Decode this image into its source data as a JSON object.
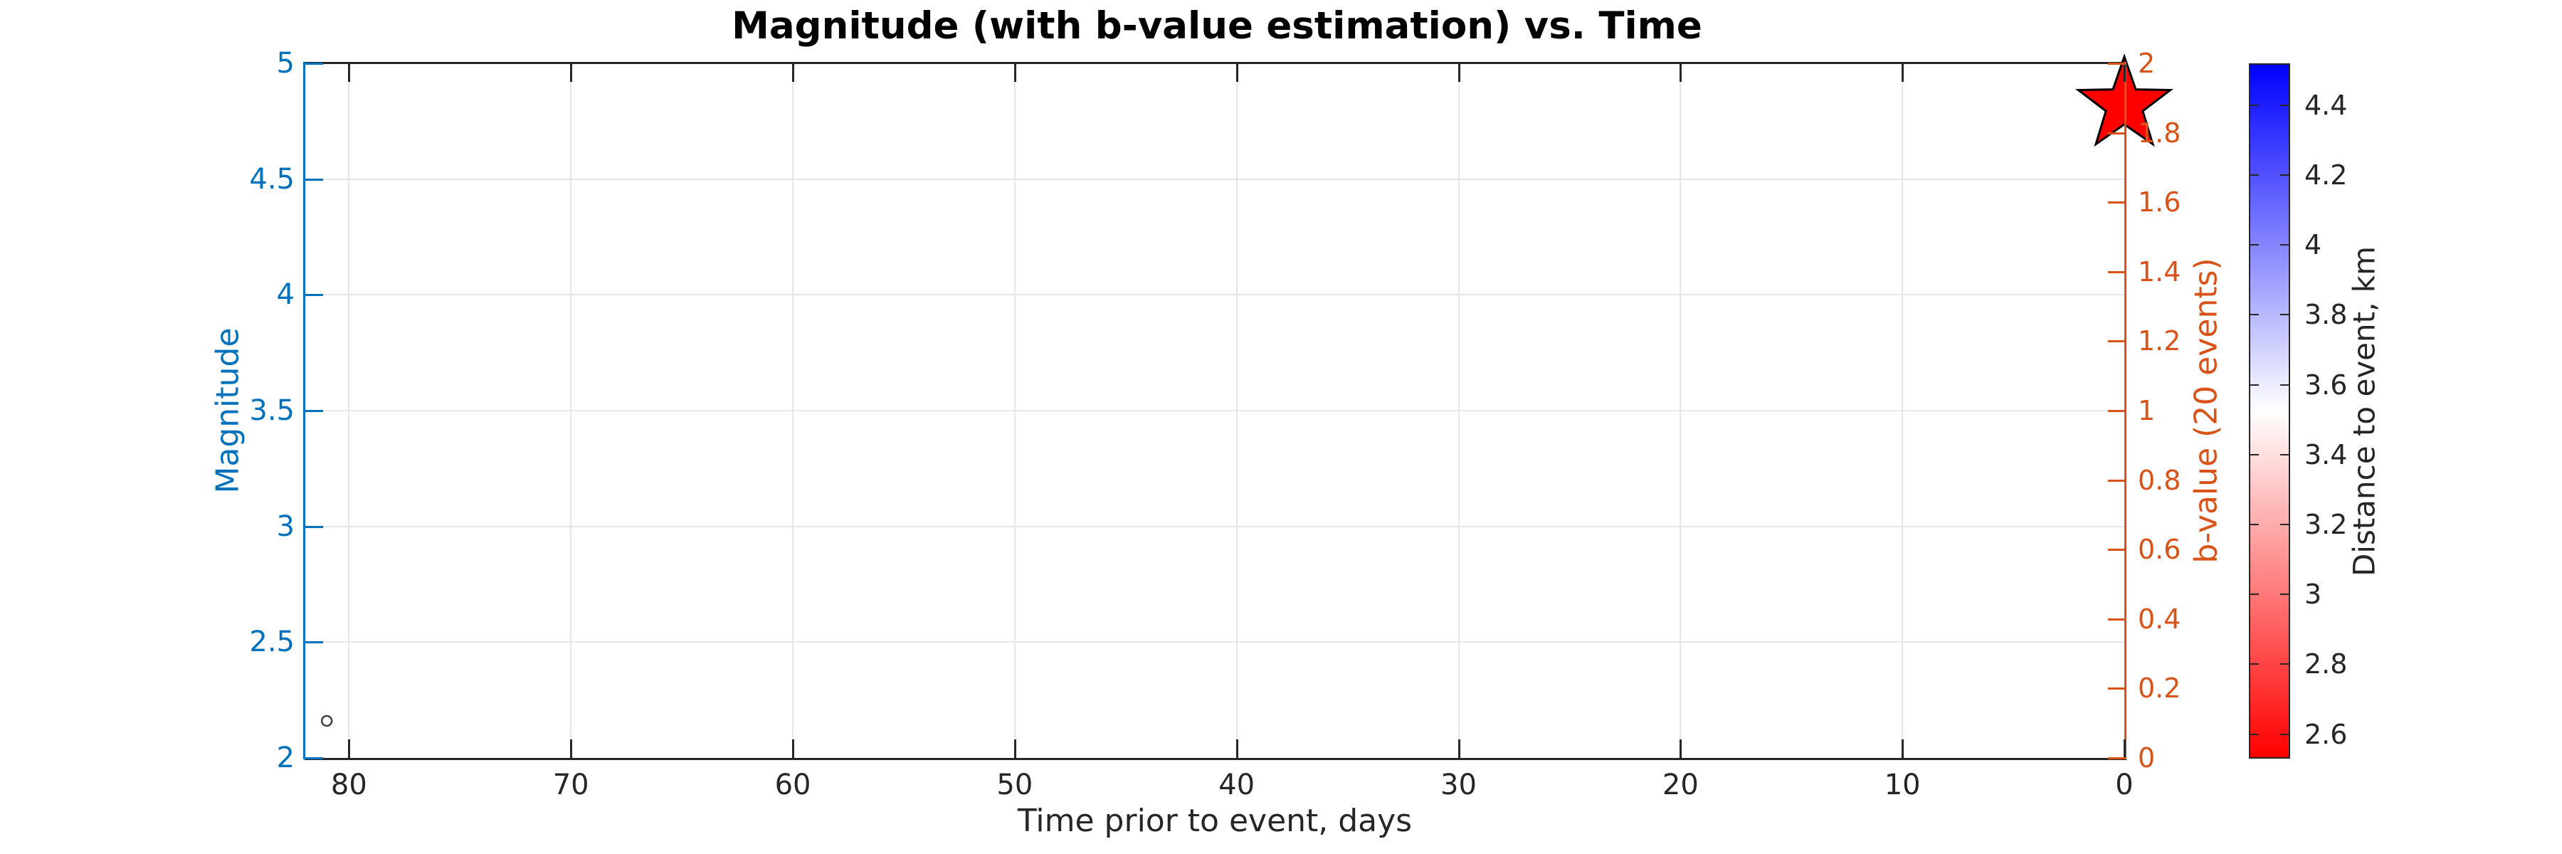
{
  "title": "Magnitude (with b-value estimation) vs. Time",
  "chart_data": {
    "type": "scatter",
    "title": "Magnitude (with b-value estimation) vs. Time",
    "grid": true,
    "legend": "none",
    "x_axis": {
      "label": "Time prior to event, days",
      "tick_labels": [
        "80",
        "70",
        "60",
        "50",
        "40",
        "30",
        "20",
        "10",
        "0"
      ],
      "tick_values": [
        80,
        70,
        60,
        50,
        40,
        30,
        20,
        10,
        0
      ],
      "range": [
        82,
        0
      ],
      "reversed": true,
      "color": "#262626"
    },
    "y_left_axis": {
      "label": "Magnitude",
      "color": "#0072BD",
      "tick_labels": [
        "2",
        "2.5",
        "3",
        "3.5",
        "4",
        "4.5",
        "5"
      ],
      "tick_values": [
        2,
        2.5,
        3,
        3.5,
        4,
        4.5,
        5
      ],
      "range": [
        2,
        5
      ]
    },
    "y_right_axis": {
      "label": "b-value (20 events)",
      "color": "#D95319",
      "tick_labels": [
        "0",
        "0.2",
        "0.4",
        "0.6",
        "0.8",
        "1",
        "1.2",
        "1.4",
        "1.6",
        "1.8",
        "2"
      ],
      "tick_values": [
        0,
        0.2,
        0.4,
        0.6,
        0.8,
        1,
        1.2,
        1.4,
        1.6,
        1.8,
        2
      ],
      "range": [
        0,
        2
      ]
    },
    "colorbar": {
      "label": "Distance to event, km",
      "tick_labels": [
        "2.6",
        "2.8",
        "3",
        "3.2",
        "3.4",
        "3.6",
        "3.8",
        "4",
        "4.2",
        "4.4"
      ],
      "tick_values": [
        2.6,
        2.8,
        3,
        3.2,
        3.4,
        3.6,
        3.8,
        4,
        4.2,
        4.4
      ],
      "range": [
        2.53,
        4.52
      ],
      "colormap_name": "blue-white-red",
      "colormap_stops": [
        "#0000FF",
        "#FFFFFF",
        "#FF0000"
      ]
    },
    "series": [
      {
        "name": "earthquake-event",
        "marker": "circle",
        "edge_color": "#3F3F3F",
        "fill": "none",
        "points": [
          {
            "time_days": 81,
            "magnitude": 2.16
          }
        ]
      },
      {
        "name": "mainshock",
        "marker": "pentagram",
        "edge_color": "#000000",
        "fill": "#FF0000",
        "points": [
          {
            "time_days": 0,
            "magnitude": 4.82
          }
        ]
      }
    ]
  },
  "style": {
    "axis_dark_color": "#262626",
    "grid_color": "#E4E7EA",
    "background": "#FFFFFF",
    "left_axis_color": "#0072BD",
    "right_axis_color": "#D95319"
  }
}
